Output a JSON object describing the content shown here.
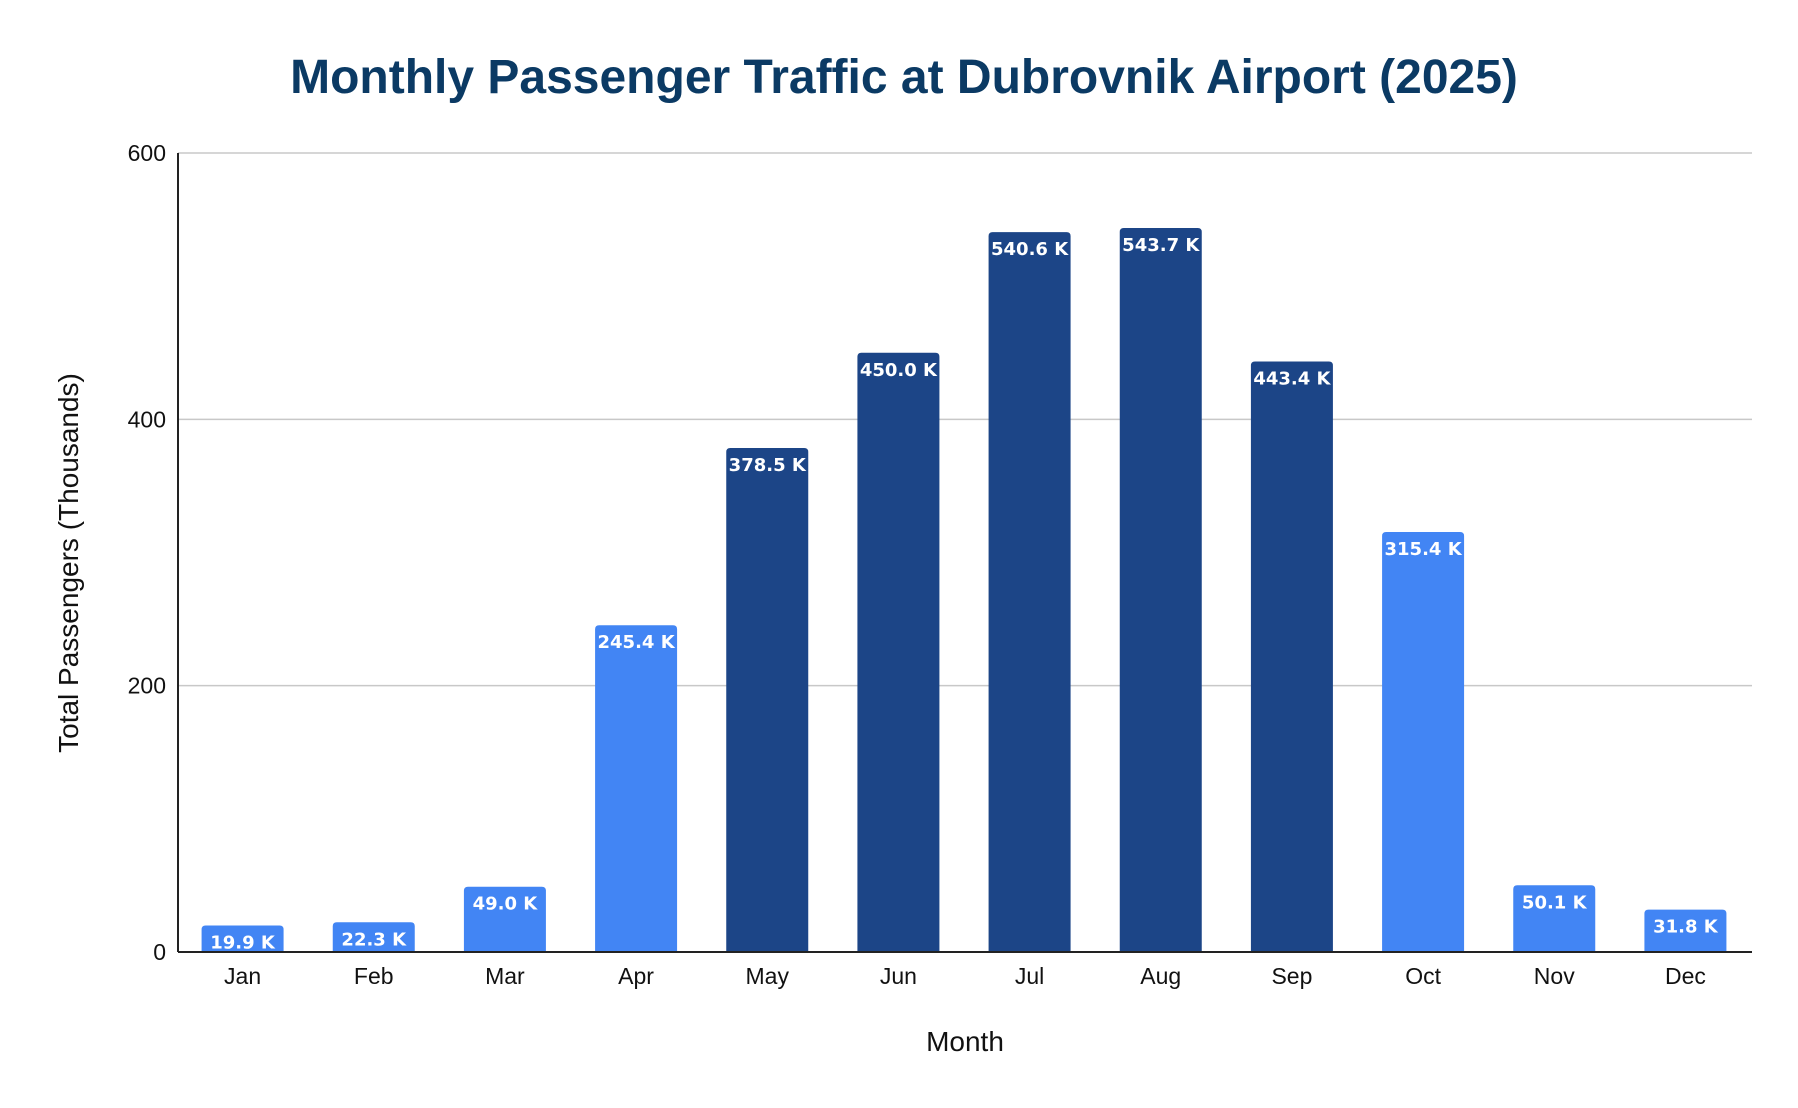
{
  "chart_data": {
    "type": "bar",
    "title": "Monthly Passenger Traffic at Dubrovnik Airport (2025)",
    "xlabel": "Month",
    "ylabel": "Total Passengers (Thousands)",
    "categories": [
      "Jan",
      "Feb",
      "Mar",
      "Apr",
      "May",
      "Jun",
      "Jul",
      "Aug",
      "Sep",
      "Oct",
      "Nov",
      "Dec"
    ],
    "values": [
      19.9,
      22.3,
      49.0,
      245.4,
      378.5,
      450.0,
      540.6,
      543.7,
      443.4,
      315.4,
      50.1,
      31.8
    ],
    "data_labels": [
      "19.9 K",
      "22.3 K",
      "49.0 K",
      "245.4 K",
      "378.5 K",
      "450.0 K",
      "540.6 K",
      "543.7 K",
      "443.4 K",
      "315.4 K",
      "50.1 K",
      "31.8 K"
    ],
    "bar_colors": [
      "#4285f4",
      "#4285f4",
      "#4285f4",
      "#4285f4",
      "#1c4587",
      "#1c4587",
      "#1c4587",
      "#1c4587",
      "#1c4587",
      "#4285f4",
      "#4285f4",
      "#4285f4"
    ],
    "ylim": [
      0,
      600
    ],
    "yticks": [
      0,
      200,
      400,
      600
    ],
    "grid": true,
    "legend": "none"
  }
}
